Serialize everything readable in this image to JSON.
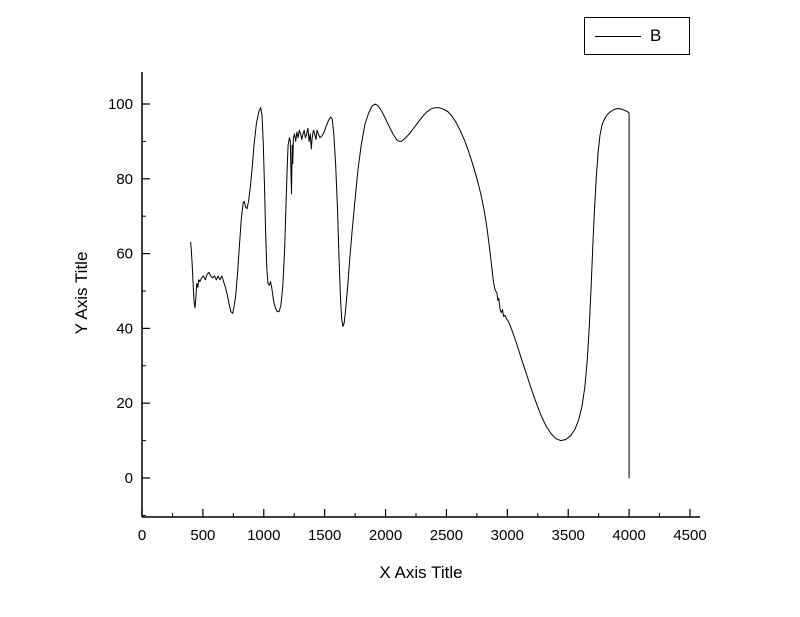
{
  "figure": {
    "background": "#ffffff",
    "line_color": "#000000",
    "xlabel": "X Axis Title",
    "ylabel": "Y Axis Title",
    "legend_label": "B"
  },
  "chart_data": {
    "type": "line",
    "title": "",
    "xlabel": "X Axis Title",
    "ylabel": "Y Axis Title",
    "xlim": [
      0,
      4500
    ],
    "ylim": [
      0,
      100
    ],
    "xticks": [
      0,
      500,
      1000,
      1500,
      2000,
      2500,
      3000,
      3500,
      4000,
      4500
    ],
    "yticks": [
      0,
      20,
      40,
      60,
      80,
      100
    ],
    "grid": false,
    "legend": {
      "position": "top-right",
      "entries": [
        "B"
      ]
    },
    "series": [
      {
        "name": "B",
        "color": "#000000",
        "points": [
          [
            400,
            63
          ],
          [
            405,
            61
          ],
          [
            412,
            57
          ],
          [
            420,
            52
          ],
          [
            428,
            47
          ],
          [
            435,
            45.5
          ],
          [
            442,
            48
          ],
          [
            450,
            52
          ],
          [
            458,
            51
          ],
          [
            466,
            53
          ],
          [
            475,
            52.5
          ],
          [
            490,
            53.5
          ],
          [
            505,
            54
          ],
          [
            520,
            53
          ],
          [
            535,
            54.5
          ],
          [
            550,
            55
          ],
          [
            565,
            54
          ],
          [
            580,
            53.5
          ],
          [
            595,
            54
          ],
          [
            610,
            53
          ],
          [
            625,
            54
          ],
          [
            640,
            53
          ],
          [
            655,
            54
          ],
          [
            670,
            52.5
          ],
          [
            685,
            51
          ],
          [
            700,
            49
          ],
          [
            715,
            46.5
          ],
          [
            730,
            44.5
          ],
          [
            745,
            44
          ],
          [
            755,
            45.5
          ],
          [
            770,
            49
          ],
          [
            785,
            55
          ],
          [
            800,
            62
          ],
          [
            815,
            69
          ],
          [
            830,
            73.5
          ],
          [
            840,
            74
          ],
          [
            850,
            72.5
          ],
          [
            862,
            72
          ],
          [
            875,
            74
          ],
          [
            890,
            78
          ],
          [
            905,
            83
          ],
          [
            920,
            89
          ],
          [
            940,
            95
          ],
          [
            960,
            98
          ],
          [
            975,
            99
          ],
          [
            985,
            97
          ],
          [
            995,
            90
          ],
          [
            1005,
            79
          ],
          [
            1015,
            66
          ],
          [
            1025,
            56
          ],
          [
            1035,
            52
          ],
          [
            1045,
            51.5
          ],
          [
            1055,
            52.5
          ],
          [
            1065,
            51
          ],
          [
            1080,
            47.5
          ],
          [
            1095,
            45.5
          ],
          [
            1110,
            44.5
          ],
          [
            1125,
            44.5
          ],
          [
            1140,
            46
          ],
          [
            1155,
            51
          ],
          [
            1170,
            60
          ],
          [
            1182,
            72
          ],
          [
            1192,
            83
          ],
          [
            1200,
            89
          ],
          [
            1210,
            91
          ],
          [
            1218,
            90
          ],
          [
            1224,
            80
          ],
          [
            1228,
            76
          ],
          [
            1233,
            89
          ],
          [
            1238,
            84
          ],
          [
            1243,
            91
          ],
          [
            1252,
            92
          ],
          [
            1262,
            90
          ],
          [
            1272,
            92.5
          ],
          [
            1282,
            91
          ],
          [
            1292,
            93
          ],
          [
            1302,
            92
          ],
          [
            1312,
            90.5
          ],
          [
            1322,
            92
          ],
          [
            1332,
            93
          ],
          [
            1342,
            91
          ],
          [
            1352,
            92
          ],
          [
            1362,
            93.5
          ],
          [
            1372,
            90
          ],
          [
            1382,
            92
          ],
          [
            1390,
            88
          ],
          [
            1398,
            91
          ],
          [
            1408,
            93
          ],
          [
            1418,
            92
          ],
          [
            1428,
            90.5
          ],
          [
            1438,
            93
          ],
          [
            1448,
            92
          ],
          [
            1462,
            91
          ],
          [
            1478,
            91.5
          ],
          [
            1495,
            92.5
          ],
          [
            1512,
            94
          ],
          [
            1530,
            95.5
          ],
          [
            1548,
            96.5
          ],
          [
            1562,
            96
          ],
          [
            1575,
            92
          ],
          [
            1590,
            84
          ],
          [
            1605,
            72
          ],
          [
            1618,
            59
          ],
          [
            1630,
            48
          ],
          [
            1640,
            42.5
          ],
          [
            1650,
            40.5
          ],
          [
            1660,
            41.5
          ],
          [
            1672,
            45
          ],
          [
            1688,
            51
          ],
          [
            1705,
            58
          ],
          [
            1725,
            66
          ],
          [
            1748,
            74
          ],
          [
            1772,
            82
          ],
          [
            1800,
            89
          ],
          [
            1830,
            94.5
          ],
          [
            1860,
            97.5
          ],
          [
            1890,
            99.5
          ],
          [
            1915,
            100
          ],
          [
            1940,
            99.5
          ],
          [
            1970,
            98
          ],
          [
            2000,
            96
          ],
          [
            2030,
            94
          ],
          [
            2060,
            92
          ],
          [
            2090,
            90.5
          ],
          [
            2110,
            90
          ],
          [
            2130,
            90
          ],
          [
            2160,
            90.8
          ],
          [
            2195,
            92
          ],
          [
            2230,
            93.5
          ],
          [
            2265,
            95
          ],
          [
            2300,
            96.5
          ],
          [
            2335,
            97.8
          ],
          [
            2370,
            98.6
          ],
          [
            2405,
            99
          ],
          [
            2440,
            99
          ],
          [
            2475,
            98.6
          ],
          [
            2510,
            98
          ],
          [
            2545,
            96.8
          ],
          [
            2580,
            95
          ],
          [
            2615,
            92.8
          ],
          [
            2650,
            90.2
          ],
          [
            2685,
            87
          ],
          [
            2720,
            83.5
          ],
          [
            2755,
            79.5
          ],
          [
            2785,
            75.5
          ],
          [
            2810,
            71.5
          ],
          [
            2832,
            67
          ],
          [
            2852,
            62
          ],
          [
            2870,
            57
          ],
          [
            2884,
            53
          ],
          [
            2894,
            51
          ],
          [
            2904,
            50
          ],
          [
            2914,
            49.5
          ],
          [
            2922,
            47.5
          ],
          [
            2930,
            48
          ],
          [
            2940,
            45.2
          ],
          [
            2950,
            44.2
          ],
          [
            2960,
            45
          ],
          [
            2970,
            43.2
          ],
          [
            2982,
            43.5
          ],
          [
            2995,
            42.5
          ],
          [
            3010,
            41.8
          ],
          [
            3030,
            40.2
          ],
          [
            3055,
            38
          ],
          [
            3085,
            35
          ],
          [
            3120,
            31.5
          ],
          [
            3160,
            27.5
          ],
          [
            3200,
            23.5
          ],
          [
            3240,
            19.8
          ],
          [
            3280,
            16.5
          ],
          [
            3320,
            13.8
          ],
          [
            3360,
            11.8
          ],
          [
            3400,
            10.5
          ],
          [
            3440,
            10
          ],
          [
            3480,
            10.3
          ],
          [
            3520,
            11.3
          ],
          [
            3555,
            13
          ],
          [
            3585,
            15.5
          ],
          [
            3612,
            19
          ],
          [
            3635,
            24
          ],
          [
            3655,
            31
          ],
          [
            3672,
            40
          ],
          [
            3688,
            51
          ],
          [
            3702,
            62
          ],
          [
            3716,
            72
          ],
          [
            3730,
            80
          ],
          [
            3745,
            87
          ],
          [
            3760,
            91.5
          ],
          [
            3778,
            94.5
          ],
          [
            3798,
            96
          ],
          [
            3822,
            97.2
          ],
          [
            3850,
            98
          ],
          [
            3880,
            98.6
          ],
          [
            3910,
            98.8
          ],
          [
            3940,
            98.6
          ],
          [
            3965,
            98.3
          ],
          [
            3985,
            98
          ],
          [
            4000,
            97.6
          ],
          [
            4000,
            0
          ]
        ]
      }
    ]
  }
}
